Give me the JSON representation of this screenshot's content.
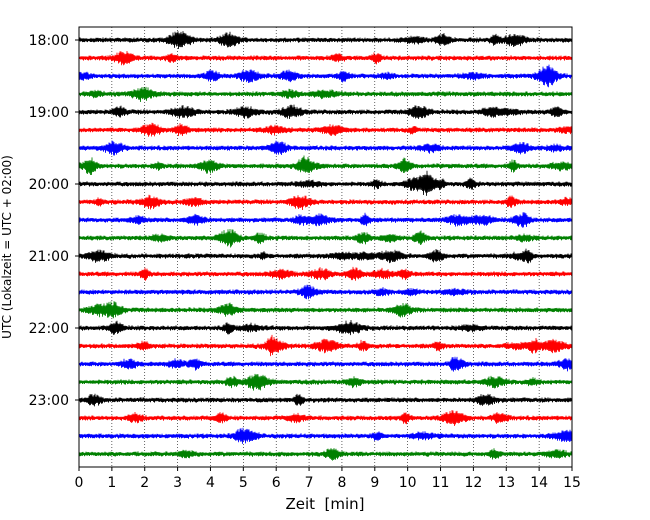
{
  "chart_data": {
    "type": "line",
    "title": "",
    "xlabel": "Zeit  [min]",
    "ylabel": "UTC (Lokalzeit = UTC + 02:00)",
    "xlim": [
      0,
      15
    ],
    "x_ticks": [
      0,
      1,
      2,
      3,
      4,
      5,
      6,
      7,
      8,
      9,
      10,
      11,
      12,
      13,
      14,
      15
    ],
    "x_tick_labels": [
      "0",
      "1",
      "2",
      "3",
      "4",
      "5",
      "6",
      "7",
      "8",
      "9",
      "10",
      "11",
      "12",
      "13",
      "14",
      "15"
    ],
    "y_tick_labels": [
      "18:00",
      "19:00",
      "20:00",
      "21:00",
      "22:00",
      "23:00"
    ],
    "grid": "vertical dotted",
    "legend": "none",
    "trace_interval_minutes": 15,
    "trace_count": 24,
    "colors": [
      "#000000",
      "#ff0000",
      "#0000ff",
      "#008000"
    ]
  }
}
